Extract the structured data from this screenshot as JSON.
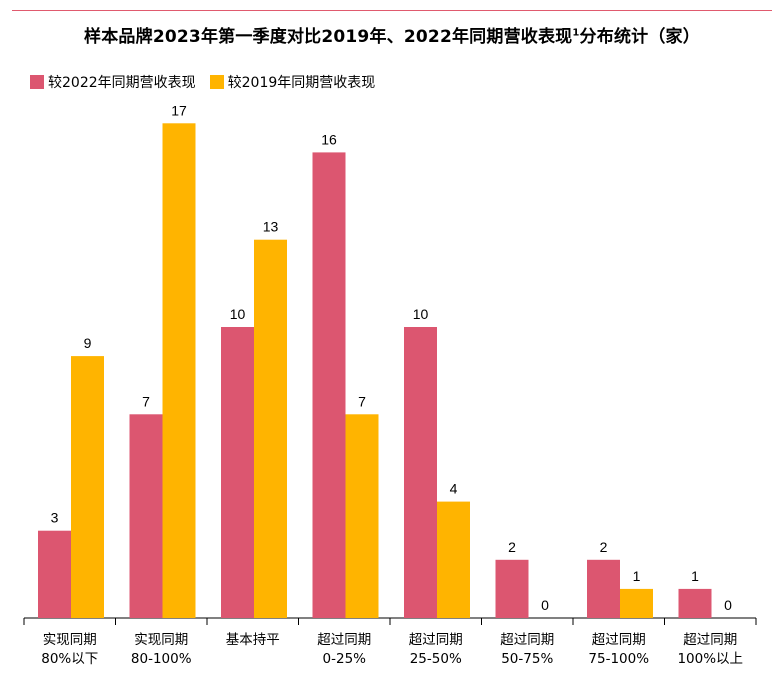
{
  "chart_data": {
    "type": "bar",
    "title_main": "样本品牌2023年第一季度对比2019年、2022年同期营收表现",
    "title_sup": "1",
    "title_tail": "分布统计（家）",
    "categories": [
      [
        "实现同期",
        "80%以下"
      ],
      [
        "实现同期",
        "80-100%"
      ],
      [
        "基本持平",
        ""
      ],
      [
        "超过同期",
        "0-25%"
      ],
      [
        "超过同期",
        "25-50%"
      ],
      [
        "超过同期",
        "50-75%"
      ],
      [
        "超过同期",
        "75-100%"
      ],
      [
        "超过同期",
        "100%以上"
      ]
    ],
    "series": [
      {
        "name": "较2022年同期营收表现",
        "color": "#DC5670",
        "values": [
          3,
          7,
          10,
          16,
          10,
          2,
          2,
          1
        ]
      },
      {
        "name": "较2019年同期营收表现",
        "color": "#FFB400",
        "values": [
          9,
          17,
          13,
          7,
          4,
          0,
          1,
          0
        ]
      }
    ],
    "ylim": [
      0,
      17
    ],
    "xlabel": "",
    "ylabel": "",
    "grid": false,
    "legend_position": "top-left"
  }
}
